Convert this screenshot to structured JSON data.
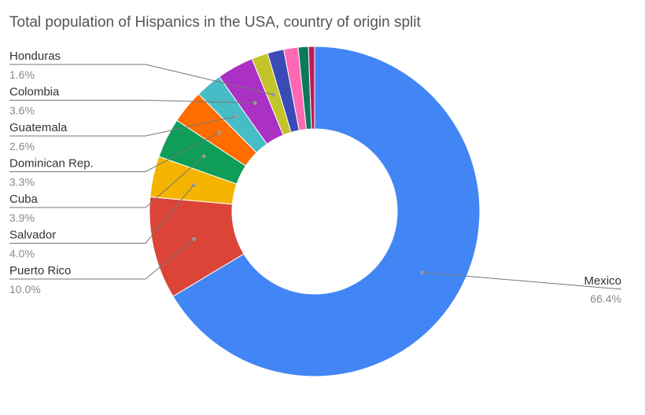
{
  "chart_data": {
    "type": "pie",
    "donut": true,
    "title": "Total population of Hispanics in the USA, country of origin split",
    "legend": "none",
    "slices": [
      {
        "name": "Mexico",
        "value": 66.4,
        "label": "66.4%",
        "color": "#4285f4",
        "labeled": true
      },
      {
        "name": "Puerto Rico",
        "value": 10.0,
        "label": "10.0%",
        "color": "#db4437",
        "labeled": true
      },
      {
        "name": "Salvador",
        "value": 4.0,
        "label": "4.0%",
        "color": "#f4b400",
        "labeled": true
      },
      {
        "name": "Cuba",
        "value": 3.9,
        "label": "3.9%",
        "color": "#0f9d58",
        "labeled": true
      },
      {
        "name": "Dominican Rep.",
        "value": 3.3,
        "label": "3.3%",
        "color": "#ff6d00",
        "labeled": true
      },
      {
        "name": "Guatemala",
        "value": 2.6,
        "label": "2.6%",
        "color": "#46bdc6",
        "labeled": true
      },
      {
        "name": "Colombia",
        "value": 3.6,
        "label": "3.6%",
        "color": "#ab30c4",
        "labeled": true
      },
      {
        "name": "Honduras",
        "value": 1.6,
        "label": "1.6%",
        "color": "#c3c32b",
        "labeled": true
      },
      {
        "name": "",
        "value": 1.6,
        "label": "",
        "color": "#3b4bb5",
        "labeled": false
      },
      {
        "name": "",
        "value": 1.4,
        "label": "",
        "color": "#ff69b4",
        "labeled": false
      },
      {
        "name": "",
        "value": 1.0,
        "label": "",
        "color": "#0b7a5a",
        "labeled": false
      },
      {
        "name": "",
        "value": 0.6,
        "label": "",
        "color": "#c2185b",
        "labeled": false
      }
    ]
  }
}
